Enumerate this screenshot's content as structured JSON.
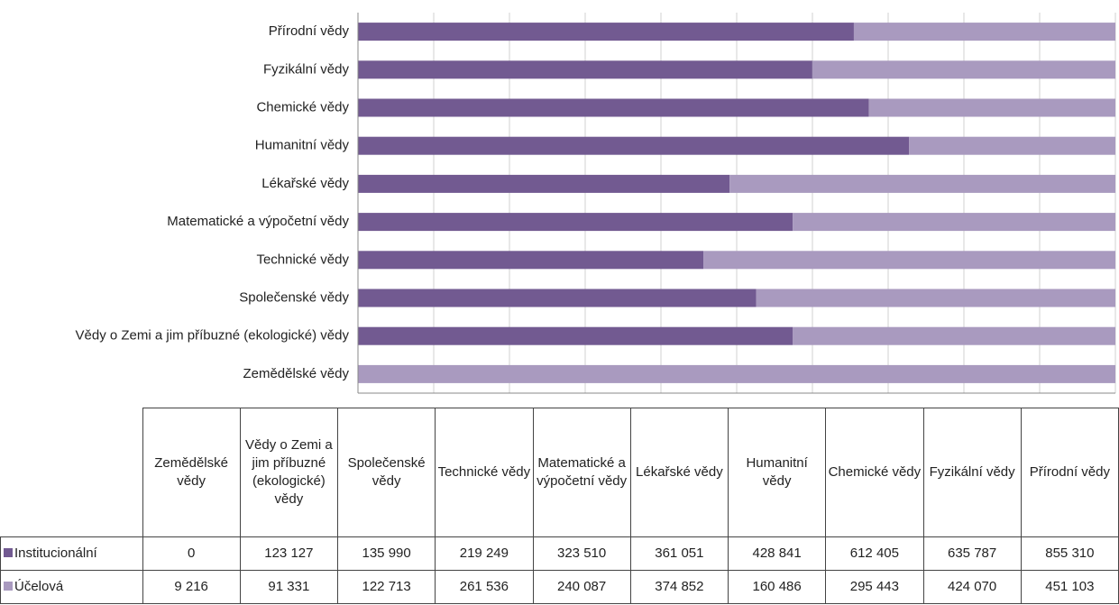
{
  "chart_data": {
    "type": "bar",
    "orientation": "horizontal",
    "stacking": "percent",
    "categories": [
      "Zemědělské vědy",
      "Vědy o Zemi a jim příbuzné (ekologické) vědy",
      "Společenské vědy",
      "Technické vědy",
      "Matematické a výpočetní vědy",
      "Lékařské vědy",
      "Humanitní vědy",
      "Chemické vědy",
      "Fyzikální vědy",
      "Přírodní vědy"
    ],
    "series": [
      {
        "name": "Institucionální",
        "color": "#725a91",
        "values": [
          0,
          123127,
          135990,
          219249,
          323510,
          361051,
          428841,
          612405,
          635787,
          855310
        ],
        "value_labels": [
          "0",
          "123 127",
          "135 990",
          "219 249",
          "323 510",
          "361 051",
          "428 841",
          "612 405",
          "635 787",
          "855 310"
        ]
      },
      {
        "name": "Účelová",
        "color": "#a99abf",
        "values": [
          9216,
          91331,
          122713,
          261536,
          240087,
          374852,
          160486,
          295443,
          424070,
          451103
        ],
        "value_labels": [
          "9 216",
          "91 331",
          "122 713",
          "261 536",
          "240 087",
          "374 852",
          "160 486",
          "295 443",
          "424 070",
          "451 103"
        ]
      }
    ],
    "grid": true
  }
}
